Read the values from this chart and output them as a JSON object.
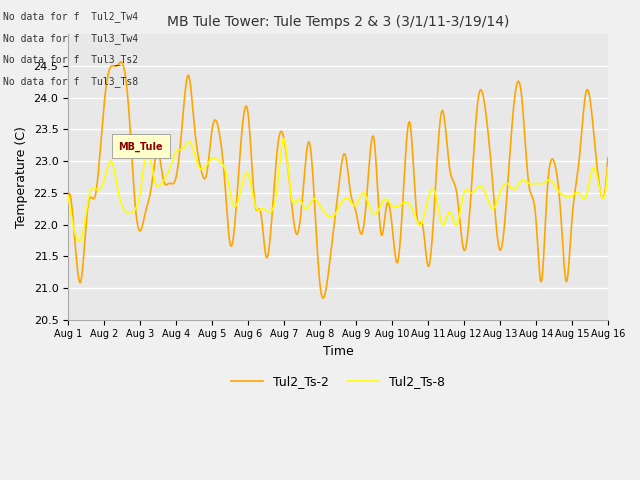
{
  "title": "MB Tule Tower: Tule Temps 2 & 3 (3/1/11-3/19/14)",
  "xlabel": "Time",
  "ylabel": "Temperature (C)",
  "xlim": [
    0,
    15
  ],
  "ylim": [
    20.5,
    25.0
  ],
  "yticks": [
    20.5,
    21.0,
    21.5,
    22.0,
    22.5,
    23.0,
    23.5,
    24.0,
    24.5
  ],
  "xtick_labels": [
    "Aug 1",
    "Aug 2",
    "Aug 3",
    "Aug 4",
    "Aug 5",
    "Aug 6",
    "Aug 7",
    "Aug 8",
    "Aug 9",
    "Aug 10",
    "Aug 11",
    "Aug 12",
    "Aug 13",
    "Aug 14",
    "Aug 15",
    "Aug 16"
  ],
  "fig_bg": "#f0f0f0",
  "ax_bg": "#e8e8e8",
  "grid_color": "#ffffff",
  "line1_color": "#FFA500",
  "line2_color": "#FFFF00",
  "legend_labels": [
    "Tul2_Ts-2",
    "Tul2_Ts-8"
  ],
  "no_data_lines": [
    "No data for f  Tul2_Tw4",
    "No data for f  Tul3_Tw4",
    "No data for f  Tul3_Ts2",
    "No data for f  Tul3_Ts8"
  ],
  "tooltip_text": "MB_Tule",
  "tooltip_bg": "#ffffcc"
}
